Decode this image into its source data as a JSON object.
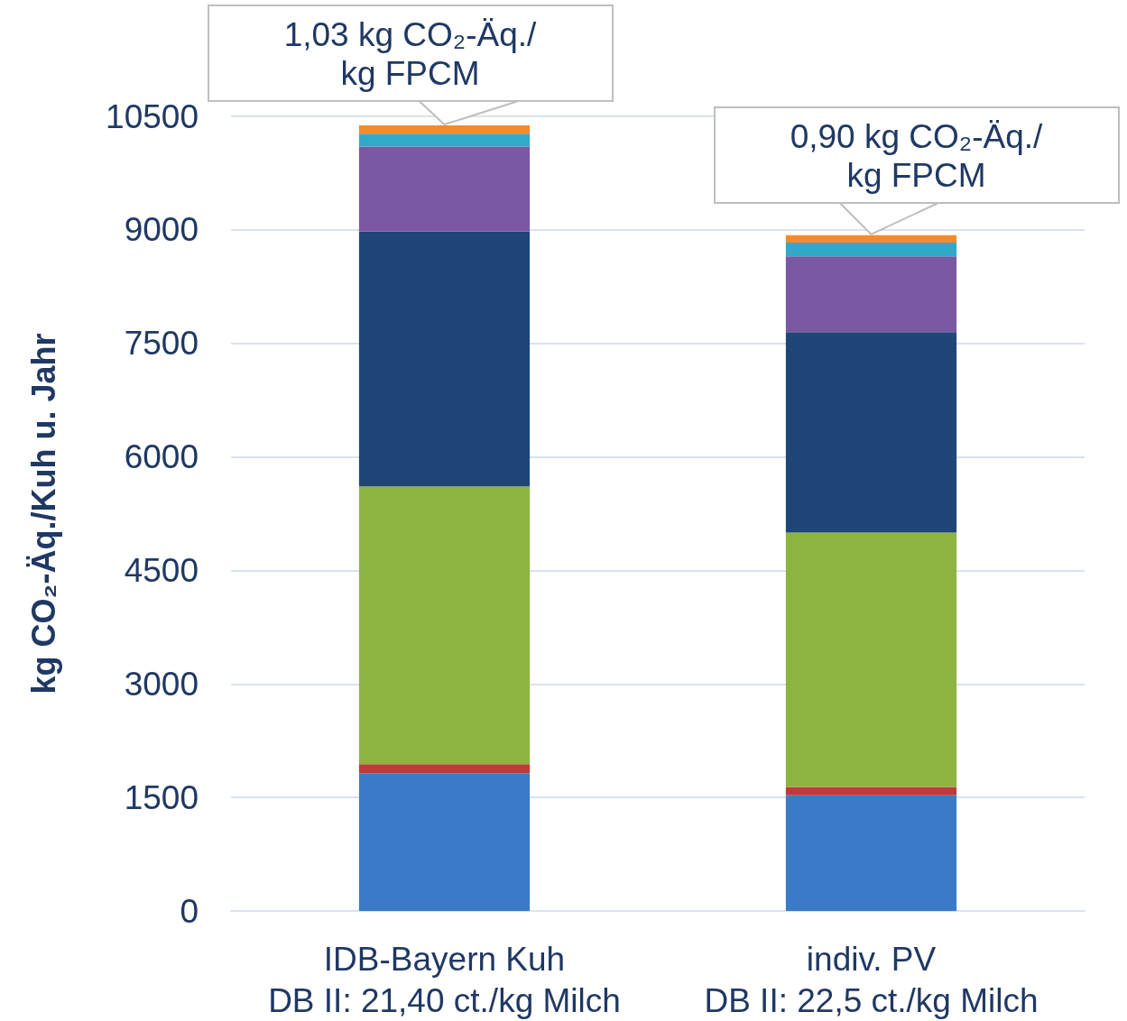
{
  "chart_data": {
    "type": "bar",
    "stacked": true,
    "ylabel": "kg CO₂-Äq./Kuh u. Jahr",
    "categories": [
      "IDB-Bayern Kuh\nDB II: 21,40 ct./kg Milch",
      "indiv. PV\nDB II: 22,5 ct./kg Milch"
    ],
    "series": [
      {
        "color": "#3a7bc8",
        "values": [
          1820,
          1530
        ]
      },
      {
        "color": "#c0393b",
        "values": [
          120,
          110
        ]
      },
      {
        "color": "#8db440",
        "values": [
          3670,
          3360
        ]
      },
      {
        "color": "#1f4677",
        "values": [
          3370,
          2650
        ]
      },
      {
        "color": "#7a58a3",
        "values": [
          1120,
          1000
        ]
      },
      {
        "color": "#31a9c8",
        "values": [
          170,
          180
        ]
      },
      {
        "color": "#f58a28",
        "values": [
          110,
          100
        ]
      }
    ],
    "ylim": [
      0,
      10500
    ],
    "yticks": [
      0,
      1500,
      3000,
      4500,
      6000,
      7500,
      9000,
      10500
    ],
    "grid": "y",
    "annotations": [
      {
        "text": "1,03 kg CO₂-Äq./\nkg FPCM",
        "x": "IDB-Bayern Kuh\nDB II: 21,40 ct./kg Milch",
        "y": 10380
      },
      {
        "text": "0,90 kg CO₂-Äq./\nkg FPCM",
        "x": "indiv. PV\nDB II: 22,5 ct./kg Milch",
        "y": 8930
      }
    ]
  }
}
